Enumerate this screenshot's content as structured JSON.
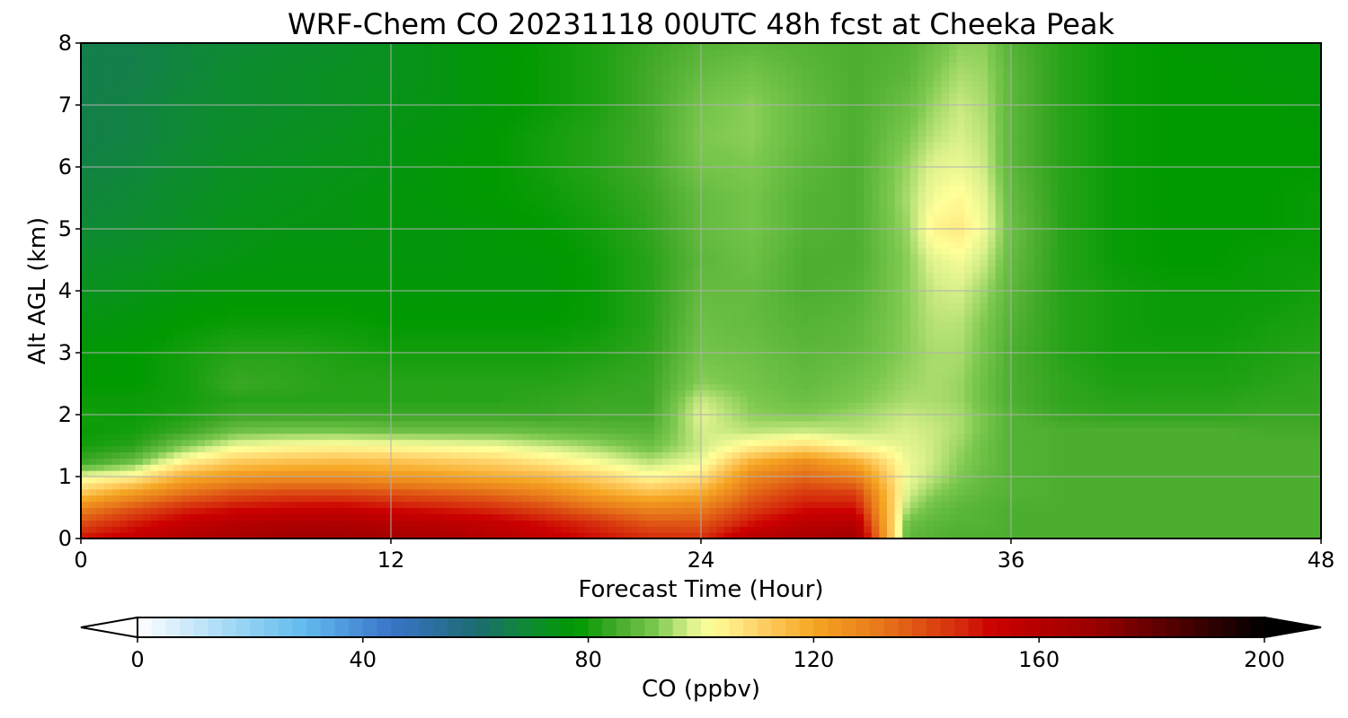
{
  "chart_data": {
    "type": "heatmap",
    "title": "WRF-Chem CO  20231118 00UTC 48h fcst at Cheeka Peak",
    "xlabel": "Forecast Time (Hour)",
    "ylabel": "Alt AGL (km)",
    "xlim": [
      0,
      48
    ],
    "ylim": [
      0,
      8
    ],
    "x_ticks": [
      0,
      12,
      24,
      36,
      48
    ],
    "y_ticks": [
      0,
      1,
      2,
      3,
      4,
      5,
      6,
      7,
      8
    ],
    "grid": true,
    "colorbar": {
      "label": "CO  (ppbv)",
      "range": [
        0,
        200
      ],
      "ticks": [
        0,
        40,
        80,
        120,
        160,
        200
      ],
      "extend": "both",
      "orientation": "horizontal",
      "colors": [
        [
          0,
          "#ffffff"
        ],
        [
          20,
          "#8fd0f3"
        ],
        [
          30,
          "#61b9ee"
        ],
        [
          45,
          "#3a74c9"
        ],
        [
          60,
          "#1d6b74"
        ],
        [
          70,
          "#0d8c2e"
        ],
        [
          78,
          "#009900"
        ],
        [
          85,
          "#44aa2a"
        ],
        [
          92,
          "#7cc84f"
        ],
        [
          98,
          "#d9f08b"
        ],
        [
          102,
          "#ffff99"
        ],
        [
          110,
          "#ffd36b"
        ],
        [
          120,
          "#f6a623"
        ],
        [
          132,
          "#e7771a"
        ],
        [
          146,
          "#d52a0c"
        ],
        [
          152,
          "#cc0000"
        ],
        [
          170,
          "#990000"
        ],
        [
          188,
          "#3d0000"
        ],
        [
          200,
          "#000000"
        ]
      ]
    },
    "description_of_field": "CO concentration (ppbv) vs forecast hour (x) and altitude AGL km (y)",
    "times": [
      0,
      2,
      4,
      6,
      8,
      10,
      12,
      14,
      16,
      18,
      20,
      22,
      24,
      26,
      28,
      30,
      32,
      33,
      34,
      35,
      36,
      38,
      40,
      42,
      44,
      46,
      48
    ],
    "altitudes": [
      0,
      0.25,
      0.5,
      0.75,
      1,
      1.25,
      1.5,
      1.75,
      2,
      2.25,
      2.5,
      3,
      3.5,
      4,
      4.5,
      5,
      5.5,
      6,
      6.5,
      7,
      7.5,
      8
    ],
    "values": [
      [
        150,
        155,
        162,
        165,
        168,
        168,
        166,
        164,
        160,
        155,
        150,
        146,
        145,
        160,
        165,
        168,
        88,
        87,
        86,
        86,
        86,
        86,
        86,
        86,
        86,
        86,
        86
      ],
      [
        140,
        148,
        155,
        160,
        162,
        163,
        160,
        158,
        155,
        150,
        145,
        138,
        138,
        150,
        158,
        160,
        90,
        88,
        87,
        87,
        86,
        86,
        86,
        86,
        86,
        86,
        86
      ],
      [
        128,
        138,
        146,
        150,
        152,
        153,
        150,
        148,
        145,
        140,
        133,
        128,
        130,
        142,
        150,
        150,
        95,
        90,
        88,
        87,
        86,
        86,
        86,
        86,
        86,
        86,
        86
      ],
      [
        112,
        122,
        132,
        138,
        140,
        140,
        138,
        136,
        133,
        128,
        120,
        114,
        118,
        135,
        143,
        142,
        98,
        93,
        90,
        88,
        87,
        86,
        86,
        86,
        86,
        86,
        86
      ],
      [
        100,
        104,
        118,
        124,
        126,
        126,
        124,
        122,
        119,
        116,
        110,
        103,
        107,
        128,
        135,
        130,
        100,
        96,
        92,
        89,
        87,
        86,
        86,
        86,
        86,
        86,
        86
      ],
      [
        84,
        90,
        104,
        112,
        114,
        115,
        114,
        112,
        110,
        106,
        101,
        96,
        100,
        118,
        126,
        118,
        100,
        97,
        93,
        90,
        87,
        86,
        86,
        86,
        86,
        86,
        86
      ],
      [
        80,
        82,
        92,
        100,
        102,
        103,
        102,
        101,
        100,
        97,
        94,
        90,
        97,
        104,
        108,
        102,
        99,
        97,
        94,
        90,
        87,
        86,
        86,
        86,
        86,
        86,
        86
      ],
      [
        79,
        80,
        84,
        90,
        91,
        91,
        90,
        90,
        90,
        89,
        88,
        87,
        98,
        96,
        97,
        96,
        98,
        97,
        95,
        91,
        87,
        86,
        86,
        86,
        86,
        85,
        85
      ],
      [
        80,
        79,
        81,
        84,
        84,
        84,
        84,
        84,
        84,
        84,
        85,
        85,
        99,
        93,
        92,
        94,
        97,
        96,
        95,
        91,
        87,
        84,
        83,
        83,
        83,
        84,
        84
      ],
      [
        79,
        79,
        80,
        82,
        82,
        82,
        82,
        82,
        82,
        83,
        84,
        84,
        97,
        92,
        90,
        92,
        95,
        95,
        94,
        90,
        86,
        83,
        82,
        82,
        82,
        83,
        83
      ],
      [
        78,
        78,
        80,
        84,
        83,
        82,
        82,
        82,
        82,
        82,
        83,
        84,
        93,
        91,
        89,
        91,
        94,
        95,
        94,
        90,
        86,
        83,
        81,
        81,
        81,
        82,
        83
      ],
      [
        77,
        78,
        80,
        82,
        82,
        81,
        80,
        80,
        80,
        80,
        81,
        83,
        91,
        90,
        88,
        89,
        93,
        95,
        95,
        91,
        86,
        82,
        80,
        80,
        80,
        81,
        82
      ],
      [
        75,
        76,
        78,
        79,
        79,
        79,
        78,
        78,
        78,
        78,
        79,
        82,
        90,
        89,
        87,
        88,
        93,
        96,
        96,
        92,
        87,
        82,
        80,
        79,
        79,
        80,
        81
      ],
      [
        73,
        74,
        76,
        77,
        77,
        77,
        77,
        77,
        77,
        77,
        79,
        82,
        89,
        89,
        86,
        87,
        93,
        97,
        98,
        94,
        88,
        82,
        80,
        79,
        79,
        79,
        80
      ],
      [
        71,
        72,
        74,
        75,
        76,
        76,
        76,
        76,
        77,
        77,
        79,
        82,
        88,
        90,
        86,
        86,
        93,
        99,
        101,
        97,
        89,
        82,
        79,
        78,
        78,
        79,
        79
      ],
      [
        69,
        70,
        72,
        74,
        75,
        75,
        76,
        76,
        77,
        78,
        80,
        83,
        89,
        91,
        87,
        86,
        94,
        104,
        106,
        100,
        90,
        82,
        79,
        78,
        78,
        78,
        79
      ],
      [
        68,
        69,
        71,
        73,
        74,
        75,
        76,
        77,
        78,
        79,
        81,
        84,
        89,
        91,
        87,
        86,
        95,
        101,
        103,
        99,
        89,
        82,
        79,
        78,
        78,
        78,
        79
      ],
      [
        67,
        68,
        70,
        72,
        73,
        74,
        75,
        77,
        78,
        80,
        82,
        85,
        91,
        92,
        88,
        86,
        94,
        99,
        100,
        97,
        88,
        82,
        79,
        78,
        78,
        78,
        78
      ],
      [
        66,
        67,
        69,
        71,
        72,
        73,
        75,
        76,
        78,
        80,
        82,
        85,
        92,
        93,
        89,
        86,
        92,
        96,
        98,
        96,
        88,
        82,
        79,
        78,
        78,
        78,
        78
      ],
      [
        66,
        67,
        69,
        70,
        71,
        72,
        74,
        75,
        77,
        79,
        81,
        85,
        91,
        93,
        89,
        86,
        90,
        94,
        97,
        95,
        88,
        82,
        79,
        78,
        78,
        78,
        77
      ],
      [
        66,
        66,
        68,
        70,
        71,
        72,
        73,
        75,
        77,
        79,
        81,
        85,
        89,
        91,
        88,
        86,
        88,
        92,
        95,
        94,
        88,
        82,
        79,
        78,
        78,
        77,
        77
      ],
      [
        66,
        66,
        68,
        69,
        70,
        71,
        73,
        75,
        77,
        79,
        81,
        84,
        87,
        88,
        87,
        86,
        87,
        90,
        93,
        93,
        87,
        82,
        79,
        78,
        77,
        77,
        77
      ]
    ]
  }
}
